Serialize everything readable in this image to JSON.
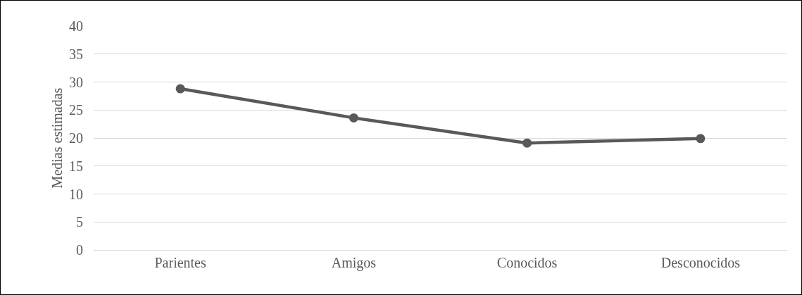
{
  "chart_data": {
    "type": "line",
    "ylabel": "Medias estimadas",
    "categories": [
      "Parientes",
      "Amigos",
      "Conocidos",
      "Desconocidos"
    ],
    "series": [
      {
        "color": "#595959",
        "values": [
          28.8,
          23.6,
          19.1,
          19.9
        ]
      }
    ],
    "ylim": [
      0,
      40
    ],
    "yticks": [
      0,
      5,
      10,
      15,
      20,
      25,
      30,
      35,
      40
    ],
    "grid": "y",
    "marker": "circle",
    "line_style": "solid"
  }
}
